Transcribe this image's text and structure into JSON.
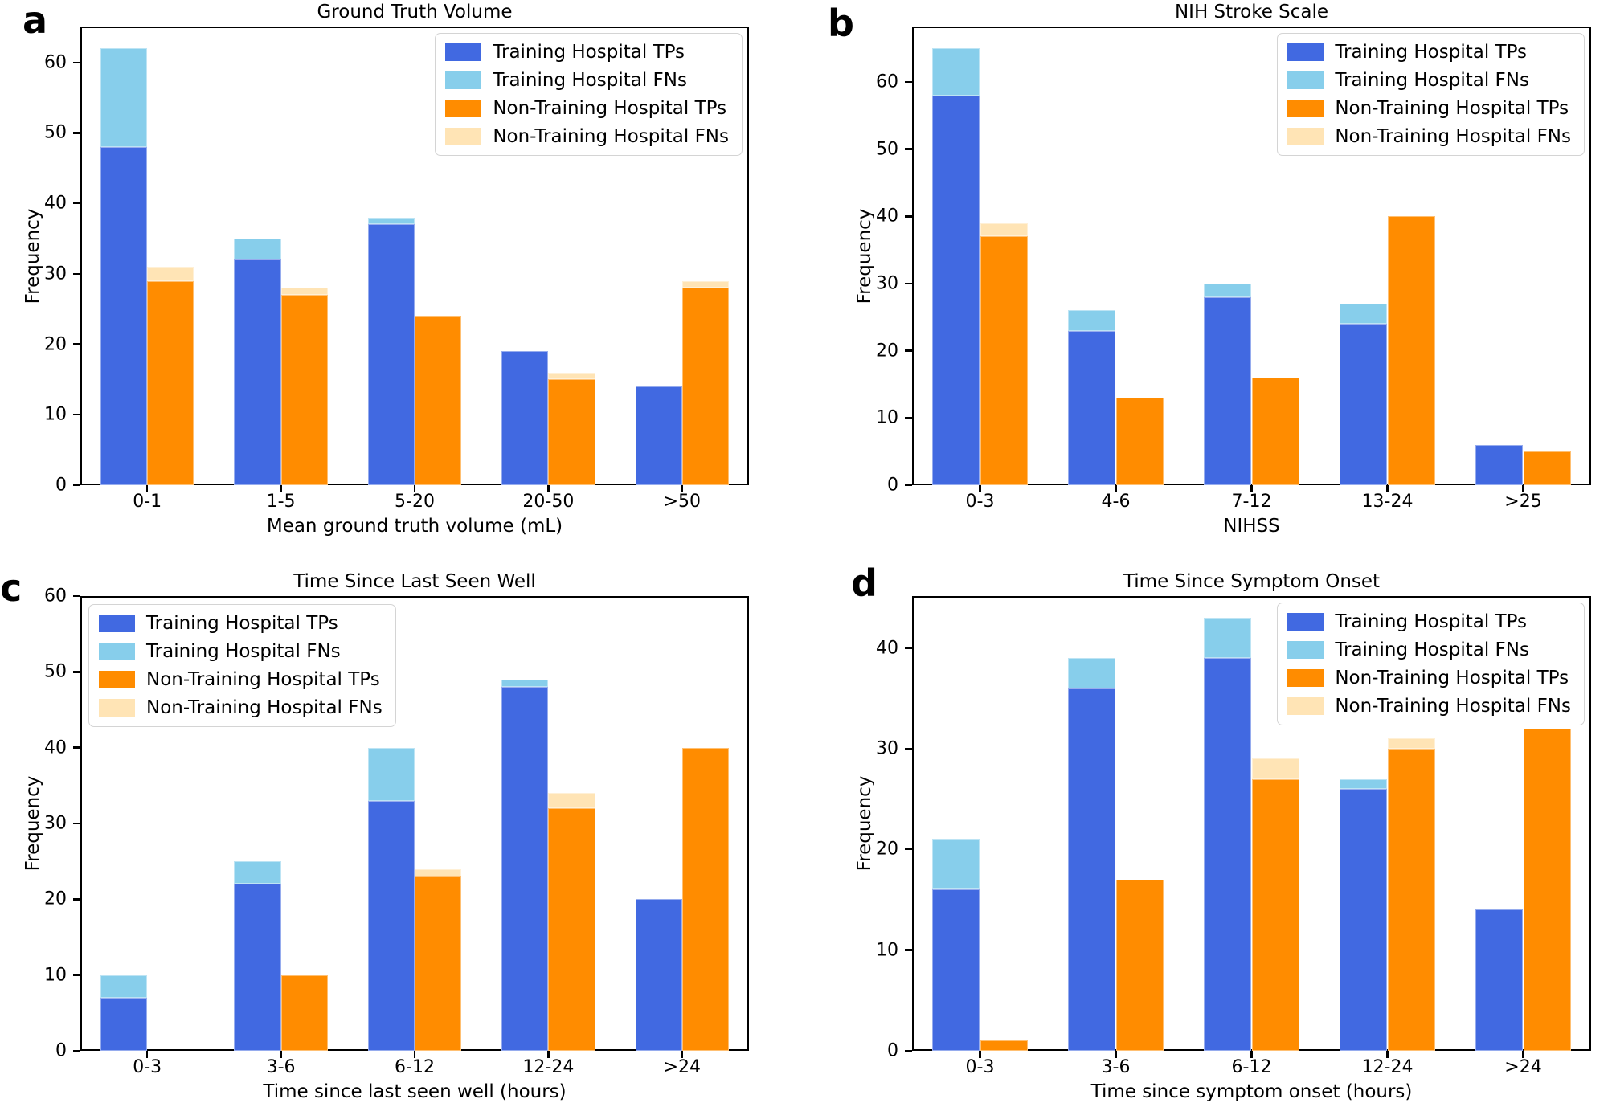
{
  "colors": {
    "training_tp": "#4169E1",
    "training_fn": "#87CEEB",
    "non_training_tp": "#FF8C00",
    "non_training_fn": "#FFE4B5",
    "frame": "#000000"
  },
  "legend": {
    "items": [
      {
        "label": "Training Hospital TPs",
        "color": "#4169E1"
      },
      {
        "label": "Training Hospital FNs",
        "color": "#87CEEB"
      },
      {
        "label": "Non-Training Hospital TPs",
        "color": "#FF8C00"
      },
      {
        "label": "Non-Training Hospital FNs",
        "color": "#FFE4B5"
      }
    ]
  },
  "chart_data": [
    {
      "type": "bar",
      "panel_label": "a",
      "title": "Ground Truth Volume",
      "xlabel": "Mean ground truth volume (mL)",
      "ylabel": "Frequency",
      "categories": [
        "0-1",
        "1-5",
        "5-20",
        "20-50",
        ">50"
      ],
      "yticks": [
        0,
        10,
        20,
        30,
        40,
        50,
        60
      ],
      "ylim": [
        0,
        65.1
      ],
      "grid": false,
      "legend_position": "top-right",
      "series": [
        {
          "name": "Training Hospital TPs",
          "color": "#4169E1",
          "values": [
            48,
            32,
            37,
            19,
            14
          ]
        },
        {
          "name": "Training Hospital FNs",
          "color": "#87CEEB",
          "stack_on": 0,
          "values": [
            14,
            3,
            1,
            0,
            0
          ]
        },
        {
          "name": "Non-Training Hospital TPs",
          "color": "#FF8C00",
          "values": [
            29,
            27,
            24,
            15,
            28
          ]
        },
        {
          "name": "Non-Training Hospital FNs",
          "color": "#FFE4B5",
          "stack_on": 2,
          "values": [
            2,
            1,
            0,
            1,
            1
          ]
        }
      ]
    },
    {
      "type": "bar",
      "panel_label": "b",
      "title": "NIH Stroke Scale",
      "xlabel": "NIHSS",
      "ylabel": "Frequency",
      "categories": [
        "0-3",
        "4-6",
        "7-12",
        "13-24",
        ">25"
      ],
      "yticks": [
        0,
        10,
        20,
        30,
        40,
        50,
        60
      ],
      "ylim": [
        0,
        68.25
      ],
      "grid": false,
      "legend_position": "top-right",
      "series": [
        {
          "name": "Training Hospital TPs",
          "color": "#4169E1",
          "values": [
            58,
            23,
            28,
            24,
            6
          ]
        },
        {
          "name": "Training Hospital FNs",
          "color": "#87CEEB",
          "stack_on": 0,
          "values": [
            7,
            3,
            2,
            3,
            0
          ]
        },
        {
          "name": "Non-Training Hospital TPs",
          "color": "#FF8C00",
          "values": [
            37,
            13,
            16,
            40,
            5
          ]
        },
        {
          "name": "Non-Training Hospital FNs",
          "color": "#FFE4B5",
          "stack_on": 2,
          "values": [
            2,
            0,
            0,
            0,
            0
          ]
        }
      ]
    },
    {
      "type": "bar",
      "panel_label": "c",
      "title": "Time Since Last Seen Well",
      "xlabel": "Time since last seen well (hours)",
      "ylabel": "Frequency",
      "categories": [
        "0-3",
        "3-6",
        "6-12",
        "12-24",
        ">24"
      ],
      "yticks": [
        0,
        10,
        20,
        30,
        40,
        50,
        60
      ],
      "ylim": [
        0,
        60
      ],
      "grid": false,
      "legend_position": "top-left",
      "series": [
        {
          "name": "Training Hospital TPs",
          "color": "#4169E1",
          "values": [
            7,
            22,
            33,
            48,
            20
          ]
        },
        {
          "name": "Training Hospital FNs",
          "color": "#87CEEB",
          "stack_on": 0,
          "values": [
            3,
            3,
            7,
            1,
            0
          ]
        },
        {
          "name": "Non-Training Hospital TPs",
          "color": "#FF8C00",
          "values": [
            0,
            10,
            23,
            32,
            40
          ]
        },
        {
          "name": "Non-Training Hospital FNs",
          "color": "#FFE4B5",
          "stack_on": 2,
          "values": [
            0,
            0,
            1,
            2,
            0
          ]
        }
      ]
    },
    {
      "type": "bar",
      "panel_label": "d",
      "title": "Time Since Symptom Onset",
      "xlabel": "Time since symptom onset (hours)",
      "ylabel": "Frequency",
      "categories": [
        "0-3",
        "3-6",
        "6-12",
        "12-24",
        ">24"
      ],
      "yticks": [
        0,
        10,
        20,
        30,
        40
      ],
      "ylim": [
        0,
        45.15
      ],
      "grid": false,
      "legend_position": "top-right",
      "series": [
        {
          "name": "Training Hospital TPs",
          "color": "#4169E1",
          "values": [
            16,
            36,
            39,
            26,
            14
          ]
        },
        {
          "name": "Training Hospital FNs",
          "color": "#87CEEB",
          "stack_on": 0,
          "values": [
            5,
            3,
            4,
            1,
            0
          ]
        },
        {
          "name": "Non-Training Hospital TPs",
          "color": "#FF8C00",
          "values": [
            1,
            17,
            27,
            30,
            32
          ]
        },
        {
          "name": "Non-Training Hospital FNs",
          "color": "#FFE4B5",
          "stack_on": 2,
          "values": [
            0,
            0,
            2,
            1,
            0
          ]
        }
      ]
    }
  ]
}
